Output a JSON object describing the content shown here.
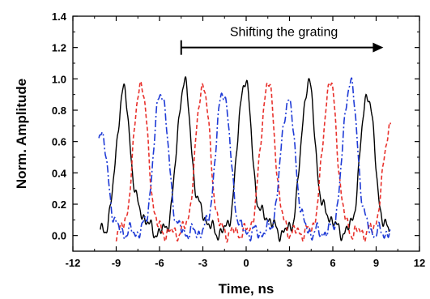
{
  "chart_data": {
    "type": "line",
    "xlabel": "Time, ns",
    "ylabel": "Norm. Amplitude",
    "xlim": [
      -12,
      12
    ],
    "ylim": [
      -0.1,
      1.4
    ],
    "xticks": [
      -12,
      -9,
      -6,
      -3,
      0,
      3,
      6,
      9,
      12
    ],
    "yticks": [
      0.0,
      0.2,
      0.4,
      0.6,
      0.8,
      1.0,
      1.2,
      1.4
    ],
    "xtick_labels": [
      "-12",
      "-9",
      "-6",
      "-3",
      "0",
      "3",
      "6",
      "9",
      "12"
    ],
    "ytick_labels": [
      "0.0",
      "0.2",
      "0.4",
      "0.6",
      "0.8",
      "1.0",
      "1.2",
      "1.4"
    ],
    "grid": false,
    "annotation": {
      "text": "Shifting the grating",
      "arrow_from": [
        -4.5,
        1.2
      ],
      "arrow_to": [
        9.5,
        1.2
      ]
    },
    "series": [
      {
        "color": "#000000",
        "style": "solid",
        "pulse_centers": [
          -8.5,
          -4.3,
          -0.1,
          4.3,
          8.4
        ],
        "pulse_peaks": [
          0.92,
          0.98,
          1.0,
          0.98,
          0.91
        ],
        "pulse_secondary": [
          -7.2,
          -3.0,
          1.4,
          5.7
        ],
        "range": [
          -10.1,
          9.9
        ]
      },
      {
        "color": "#e8312c",
        "style": "dashed",
        "pulse_centers": [
          -7.3,
          -3.0,
          1.5,
          5.8,
          10.0
        ],
        "pulse_peaks": [
          0.98,
          0.97,
          0.98,
          0.98,
          0.72
        ],
        "range": [
          -9.0,
          10.0
        ]
      },
      {
        "color": "#1f3bd6",
        "style": "dash-dot",
        "pulse_centers": [
          -10.1,
          -5.9,
          -1.6,
          2.9,
          7.2
        ],
        "pulse_peaks": [
          0.67,
          0.93,
          0.93,
          0.87,
          0.99
        ],
        "range": [
          -10.2,
          10.0
        ]
      }
    ]
  }
}
